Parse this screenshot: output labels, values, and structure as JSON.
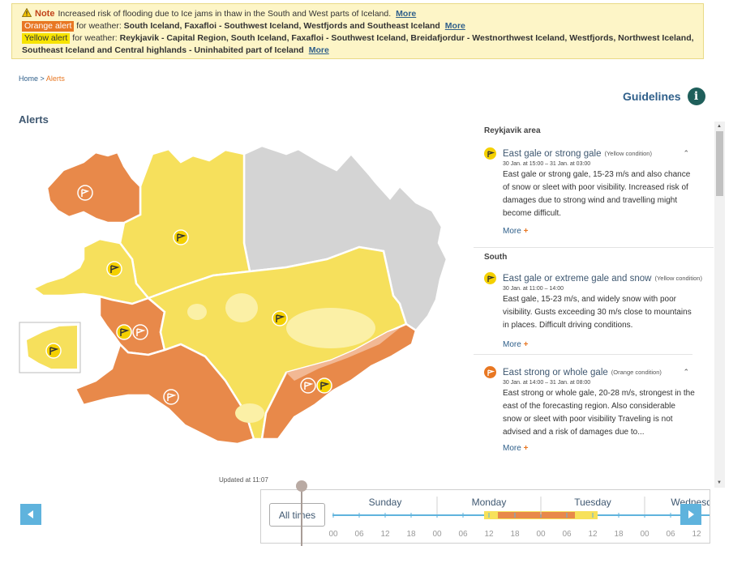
{
  "banner": {
    "note": {
      "label": "Note",
      "text": "Increased risk of flooding due to Ice jams in thaw in the South and West parts of Iceland.",
      "more": "More"
    },
    "orange": {
      "badge": "Orange alert",
      "prefix": "for weather:",
      "regions": "South Iceland, Faxafloi - Southwest Iceland, Westfjords and Southeast Iceland",
      "more": "More"
    },
    "yellow": {
      "badge": "Yellow alert",
      "prefix": "for weather:",
      "regions": "Reykjavik - Capital Region, South Iceland, Faxafloi - Southwest Iceland, Breidafjordur - Westnorthwest Iceland, Westfjords, Northwest Iceland, Southeast Iceland and Central highlands - Uninhabited part of Iceland",
      "more": "More"
    }
  },
  "breadcrumb": {
    "home": "Home",
    "separator": ">",
    "current": "Alerts"
  },
  "guidelines": {
    "label": "Guidelines",
    "icon": "info-icon"
  },
  "heading": "Alerts",
  "updated": "Updated at 11:07",
  "panel": {
    "regions": [
      {
        "name": "Reykjavik area",
        "alerts": [
          {
            "title": "East gale or strong gale",
            "condition": "(Yellow condition)",
            "level": "yellow",
            "time": "30 Jan. at 15:00 – 31 Jan. at 03:00",
            "body": "East gale or strong gale, 15-23 m/s and also chance of snow or sleet with poor visibility. Increased risk of damages due to strong wind and travelling might become difficult.",
            "more": "More"
          }
        ]
      },
      {
        "name": "South",
        "alerts": [
          {
            "title": "East gale or extreme gale and snow",
            "condition": "(Yellow condition)",
            "level": "yellow",
            "time": "30 Jan. at 11:00 – 14:00",
            "body": "East gale, 15-23 m/s, and widely snow with poor visibility. Gusts exceeding 30 m/s close to mountains in places. Difficult driving conditions.",
            "more": "More"
          },
          {
            "title": "East strong or whole gale",
            "condition": "(Orange condition)",
            "level": "orange",
            "time": "30 Jan. at 14:00 – 31 Jan. at 08:00",
            "body": "East strong or whole gale, 20-28 m/s, strongest in the east of the forecasting region. Also considerable snow or sleet with poor visibility Traveling is not advised and a risk of damages due to...",
            "more": "More"
          }
        ]
      }
    ]
  },
  "timeline": {
    "all_times": "All times",
    "days": [
      "Sunday",
      "Monday",
      "Tuesday",
      "Wednesday"
    ],
    "hours": [
      "00",
      "06",
      "12",
      "18",
      "00",
      "06",
      "12",
      "18",
      "00",
      "06",
      "12",
      "18",
      "00",
      "06",
      "12"
    ]
  },
  "colors": {
    "yellow_alert": "#f7e15a",
    "orange_alert": "#e8894a",
    "light_orange": "#f2b894",
    "no_alert": "#d4d4d4",
    "accent_blue": "#5fb3dd",
    "link_blue": "#2f5f8a"
  }
}
